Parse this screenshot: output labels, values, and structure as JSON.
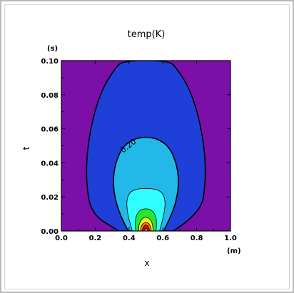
{
  "chart_data": {
    "type": "contour",
    "title": "temp(K)",
    "xlabel": "x",
    "ylabel": "t",
    "x_unit": "(m)",
    "y_unit": "(s)",
    "xlim": [
      0.0,
      1.0
    ],
    "ylim": [
      0.0,
      0.1
    ],
    "x_ticks": [
      "0.0",
      "0.2",
      "0.4",
      "0.6",
      "0.8",
      "1.0"
    ],
    "y_ticks": [
      "0.00",
      "0.02",
      "0.04",
      "0.06",
      "0.08",
      "0.10"
    ],
    "contour_label": "0.20",
    "levels": [
      {
        "color": "#7b0fa8",
        "half_width": [
          [
            0.0,
            0.5
          ],
          [
            0.1,
            0.5
          ]
        ]
      },
      {
        "color": "#1f3fd9",
        "half_width": [
          [
            0.0,
            0.16
          ],
          [
            0.01,
            0.325
          ],
          [
            0.03,
            0.355
          ],
          [
            0.05,
            0.345
          ],
          [
            0.07,
            0.305
          ],
          [
            0.085,
            0.25
          ],
          [
            0.095,
            0.185
          ],
          [
            0.1,
            0.14
          ]
        ]
      },
      {
        "color": "#22b8e8",
        "half_width": [
          [
            0.0,
            0.105
          ],
          [
            0.01,
            0.155
          ],
          [
            0.02,
            0.185
          ],
          [
            0.03,
            0.195
          ],
          [
            0.04,
            0.18
          ],
          [
            0.05,
            0.135
          ],
          [
            0.055,
            0.05
          ]
        ]
      },
      {
        "color": "#30ffff",
        "half_width": [
          [
            0.0,
            0.08
          ],
          [
            0.01,
            0.11
          ],
          [
            0.02,
            0.115
          ],
          [
            0.025,
            0.07
          ]
        ]
      },
      {
        "color": "#22e830",
        "half_width": [
          [
            0.0,
            0.06
          ],
          [
            0.005,
            0.065
          ],
          [
            0.01,
            0.055
          ],
          [
            0.013,
            0.025
          ]
        ]
      },
      {
        "color": "#f0f020",
        "half_width": [
          [
            0.0,
            0.042
          ],
          [
            0.004,
            0.042
          ],
          [
            0.008,
            0.018
          ]
        ]
      },
      {
        "color": "#ff7a00",
        "half_width": [
          [
            0.0,
            0.032
          ],
          [
            0.003,
            0.028
          ],
          [
            0.005,
            0.012
          ]
        ]
      },
      {
        "color": "#d81010",
        "half_width": [
          [
            0.0,
            0.022
          ],
          [
            0.002,
            0.018
          ],
          [
            0.0035,
            0.006
          ]
        ]
      },
      {
        "color": "#ffd0d0",
        "half_width": [
          [
            0.0,
            0.012
          ],
          [
            0.0015,
            0.006
          ]
        ]
      }
    ]
  }
}
